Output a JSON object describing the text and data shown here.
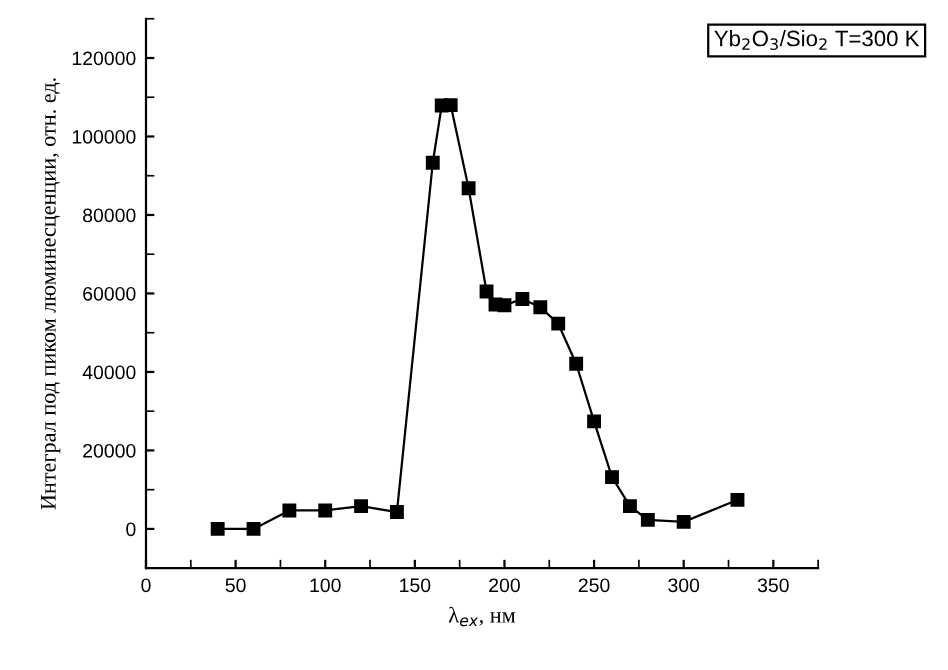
{
  "chart_data": {
    "type": "line",
    "xlabel": "λ$_{ex}$, нм",
    "ylabel": "Интеграл под пиком люминесценции, отн. ед.",
    "annotations": [
      "Yb$_{2}$O$_{3}$/Sio$_{2}$ T=300 K"
    ],
    "x": [
      40,
      60,
      80,
      100,
      120,
      140,
      160,
      165,
      170,
      180,
      190,
      195,
      200,
      210,
      220,
      230,
      240,
      250,
      260,
      270,
      280,
      300,
      330
    ],
    "series": [
      {
        "color": "#000000",
        "values": [
          0,
          0,
          4700,
          4700,
          5800,
          4300,
          93300,
          107900,
          108000,
          86800,
          60500,
          57200,
          57000,
          58600,
          56500,
          52300,
          42100,
          27400,
          13200,
          5800,
          2300,
          1800,
          7400
        ]
      }
    ],
    "xlim": [
      0,
      375
    ],
    "xticks": [
      0,
      50,
      100,
      150,
      200,
      250,
      300,
      350
    ],
    "ylim": [
      -10000,
      130000
    ],
    "yticks": [
      0,
      20000,
      40000,
      60000,
      80000,
      100000,
      120000
    ],
    "marker": "square",
    "line_style": "solid",
    "grid": false
  }
}
